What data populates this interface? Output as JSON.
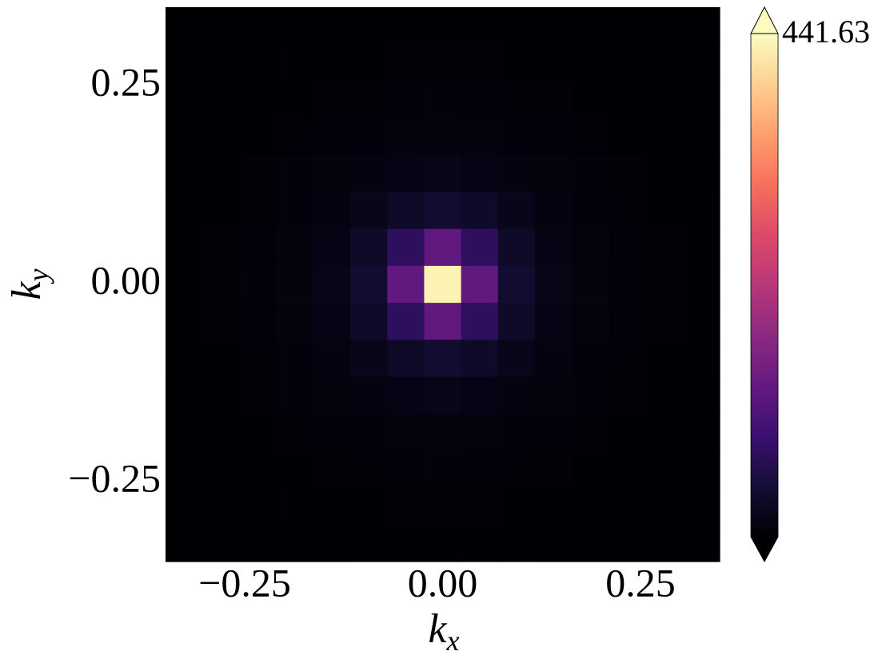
{
  "chart_data": {
    "type": "heatmap",
    "xlabel": {
      "base": "k",
      "sub": "x"
    },
    "ylabel": {
      "base": "k",
      "sub": "y"
    },
    "xlim": [
      -0.35,
      0.35
    ],
    "ylim": [
      -0.35,
      0.35
    ],
    "xticks": [
      {
        "value": -0.25,
        "label": "−0.25"
      },
      {
        "value": 0,
        "label": "0.00"
      },
      {
        "value": 0.25,
        "label": "0.25"
      }
    ],
    "yticks": [
      {
        "value": -0.25,
        "label": "−0.25"
      },
      {
        "value": 0,
        "label": "0.00"
      },
      {
        "value": 0.25,
        "label": "0.25"
      }
    ],
    "colormap": "magma",
    "zlim": [
      0,
      441.63
    ],
    "colorbar_ticks": [
      441.63
    ],
    "colorbar_extend": "both",
    "z": [
      [
        0,
        0,
        0,
        0,
        0,
        1,
        1,
        1,
        1,
        1,
        0,
        0,
        0,
        0,
        0
      ],
      [
        0,
        0,
        0,
        1,
        1,
        1,
        2,
        2,
        2,
        1,
        1,
        1,
        0,
        0,
        0
      ],
      [
        0,
        0,
        1,
        1,
        2,
        3,
        4,
        5,
        4,
        3,
        2,
        1,
        1,
        0,
        0
      ],
      [
        0,
        1,
        1,
        3,
        5,
        7,
        8,
        9,
        8,
        7,
        5,
        3,
        1,
        1,
        0
      ],
      [
        0,
        1,
        2,
        5,
        8,
        11,
        14,
        16,
        14,
        11,
        8,
        5,
        2,
        1,
        0
      ],
      [
        1,
        1,
        3,
        7,
        11,
        18,
        31,
        39,
        31,
        18,
        11,
        7,
        3,
        1,
        1
      ],
      [
        1,
        2,
        4,
        8,
        14,
        31,
        74,
        130,
        74,
        31,
        14,
        8,
        4,
        2,
        1
      ],
      [
        1,
        2,
        5,
        9,
        16,
        39,
        130,
        430,
        130,
        39,
        16,
        9,
        5,
        2,
        1
      ],
      [
        1,
        2,
        4,
        8,
        14,
        31,
        74,
        130,
        74,
        31,
        14,
        8,
        4,
        2,
        1
      ],
      [
        1,
        1,
        3,
        7,
        11,
        18,
        31,
        39,
        31,
        18,
        11,
        7,
        3,
        1,
        1
      ],
      [
        0,
        1,
        2,
        5,
        8,
        11,
        14,
        16,
        14,
        11,
        8,
        5,
        2,
        1,
        0
      ],
      [
        0,
        1,
        1,
        3,
        5,
        7,
        8,
        9,
        8,
        7,
        5,
        3,
        1,
        1,
        0
      ],
      [
        0,
        0,
        1,
        1,
        2,
        3,
        4,
        5,
        4,
        3,
        2,
        1,
        1,
        0,
        0
      ],
      [
        0,
        0,
        0,
        1,
        1,
        1,
        2,
        2,
        2,
        1,
        1,
        1,
        0,
        0,
        0
      ],
      [
        0,
        0,
        0,
        0,
        0,
        1,
        1,
        1,
        1,
        1,
        0,
        0,
        0,
        0,
        0
      ]
    ]
  }
}
